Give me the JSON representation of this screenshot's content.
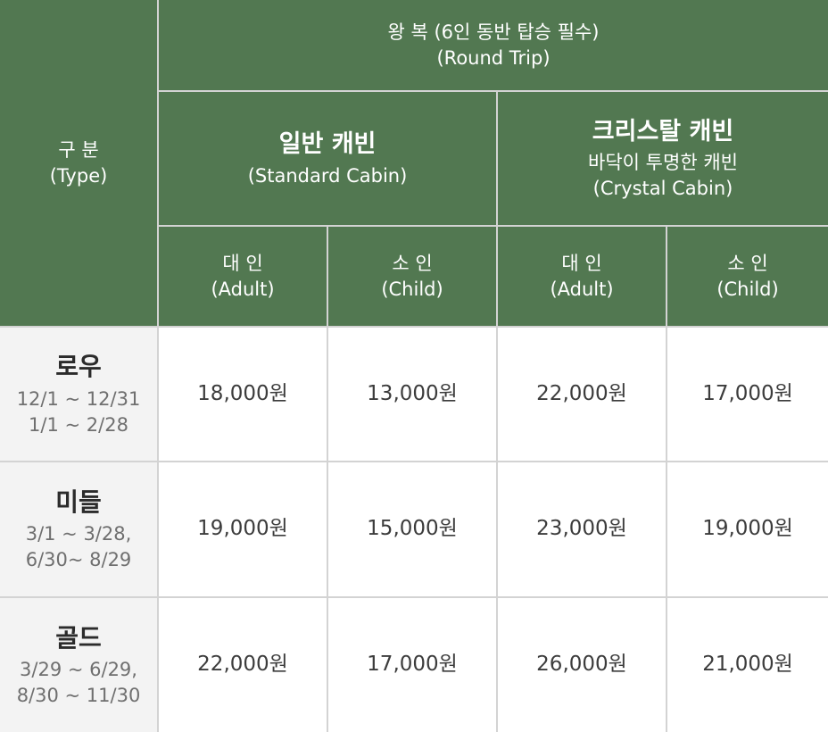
{
  "header": {
    "type_label": [
      "구 분",
      "(Type)"
    ],
    "trip": [
      "왕 복 (6인 동반 탑승 필수)",
      "(Round Trip)"
    ],
    "standard_cabin": {
      "title": "일반 캐빈",
      "sub": [
        "(Standard Cabin)"
      ]
    },
    "crystal_cabin": {
      "title": "크리스탈 캐빈",
      "sub": [
        "바닥이 투명한 캐빈",
        "(Crystal Cabin)"
      ]
    },
    "passengers": [
      [
        "대 인",
        "(Adult)"
      ],
      [
        "소 인",
        "(Child)"
      ],
      [
        "대 인",
        "(Adult)"
      ],
      [
        "소 인",
        "(Child)"
      ]
    ]
  },
  "rows": [
    {
      "season": "로우",
      "dates": [
        "12/1 ~ 12/31",
        "1/1 ~ 2/28"
      ],
      "prices": [
        "18,000원",
        "13,000원",
        "22,000원",
        "17,000원"
      ]
    },
    {
      "season": "미들",
      "dates": [
        "3/1 ~ 3/28,",
        "6/30~ 8/29"
      ],
      "prices": [
        "19,000원",
        "15,000원",
        "23,000원",
        "19,000원"
      ]
    },
    {
      "season": "골드",
      "dates": [
        "3/29 ~ 6/29,",
        "8/30 ~ 11/30"
      ],
      "prices": [
        "22,000원",
        "17,000원",
        "26,000원",
        "21,000원"
      ]
    }
  ],
  "colors": {
    "header_bg": "#527851",
    "row_header_bg": "#f3f3f3",
    "border": "#d3d3d3"
  }
}
